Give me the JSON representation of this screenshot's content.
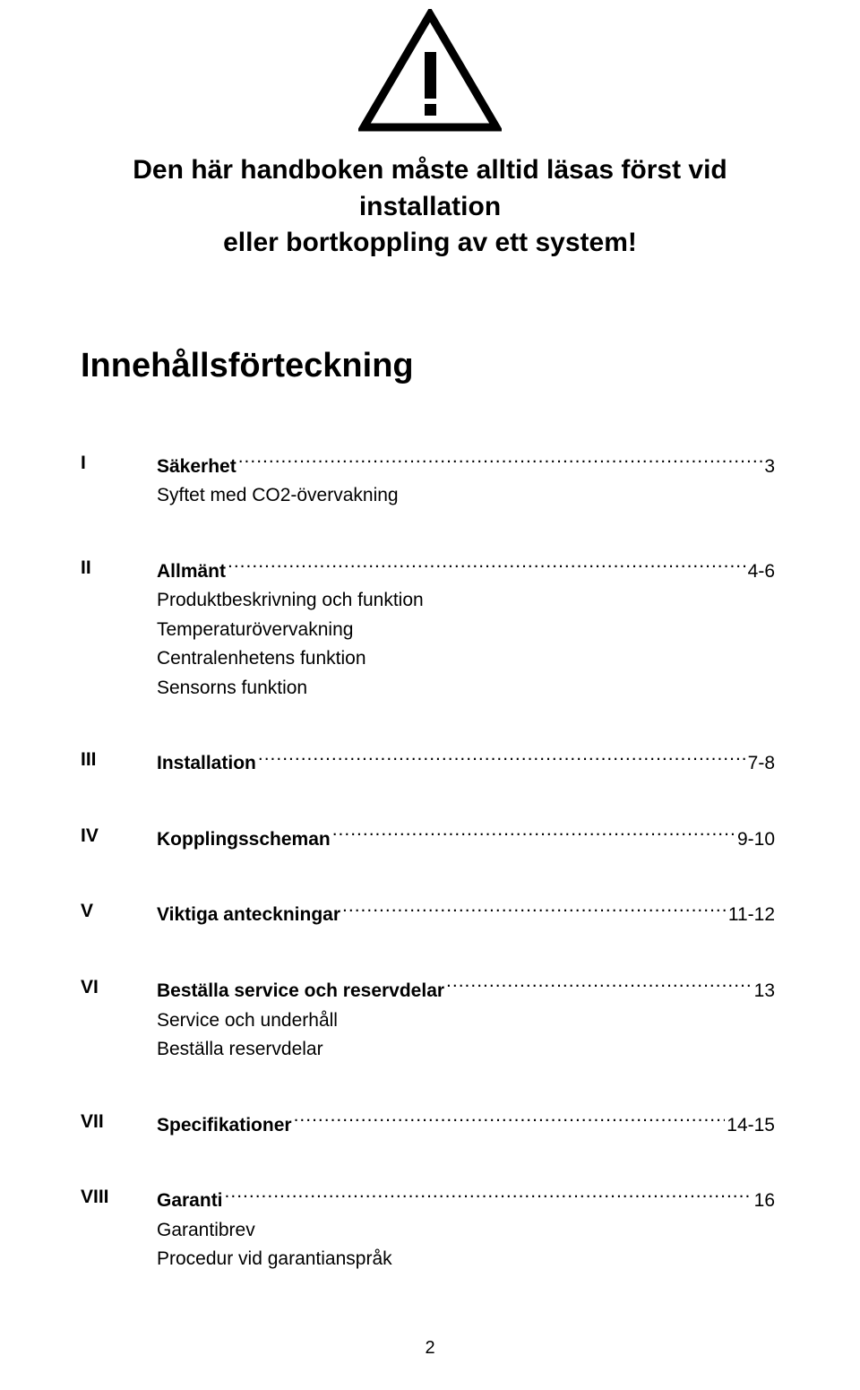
{
  "colors": {
    "text": "#000000",
    "background": "#ffffff",
    "icon_stroke": "#000000"
  },
  "icon": {
    "name": "warning-triangle-icon"
  },
  "headline": {
    "line1": "Den här handboken måste alltid läsas först vid installation",
    "line2": "eller bortkoppling av ett system!"
  },
  "toc_title": "Innehållsförteckning",
  "sections": [
    {
      "numeral": "I",
      "title": "Säkerhet",
      "page": "3",
      "sub": [
        "Syftet med CO2-övervakning"
      ]
    },
    {
      "numeral": "II",
      "title": "Allmänt",
      "page": " 4-6",
      "sub": [
        "Produktbeskrivning och funktion",
        "Temperaturövervakning",
        "Centralenhetens funktion",
        "Sensorns funktion"
      ]
    },
    {
      "numeral": "III",
      "title": "Installation",
      "page": " 7-8",
      "sub": []
    },
    {
      "numeral": "IV",
      "title": "Kopplingsscheman",
      "page": " 9-10",
      "sub": []
    },
    {
      "numeral": "V",
      "title": "Viktiga anteckningar",
      "page": "11-12",
      "sub": []
    },
    {
      "numeral": "VI",
      "title": "Beställa service och reservdelar",
      "page": "13",
      "sub": [
        "Service och underhåll",
        "Beställa reservdelar"
      ]
    },
    {
      "numeral": "VII",
      "title": "Specifikationer",
      "page": " 14-15",
      "sub": []
    },
    {
      "numeral": "VIII",
      "title": "Garanti",
      "page": "16",
      "sub": [
        "Garantibrev",
        "Procedur vid garantianspråk"
      ]
    }
  ],
  "page_number": "2"
}
